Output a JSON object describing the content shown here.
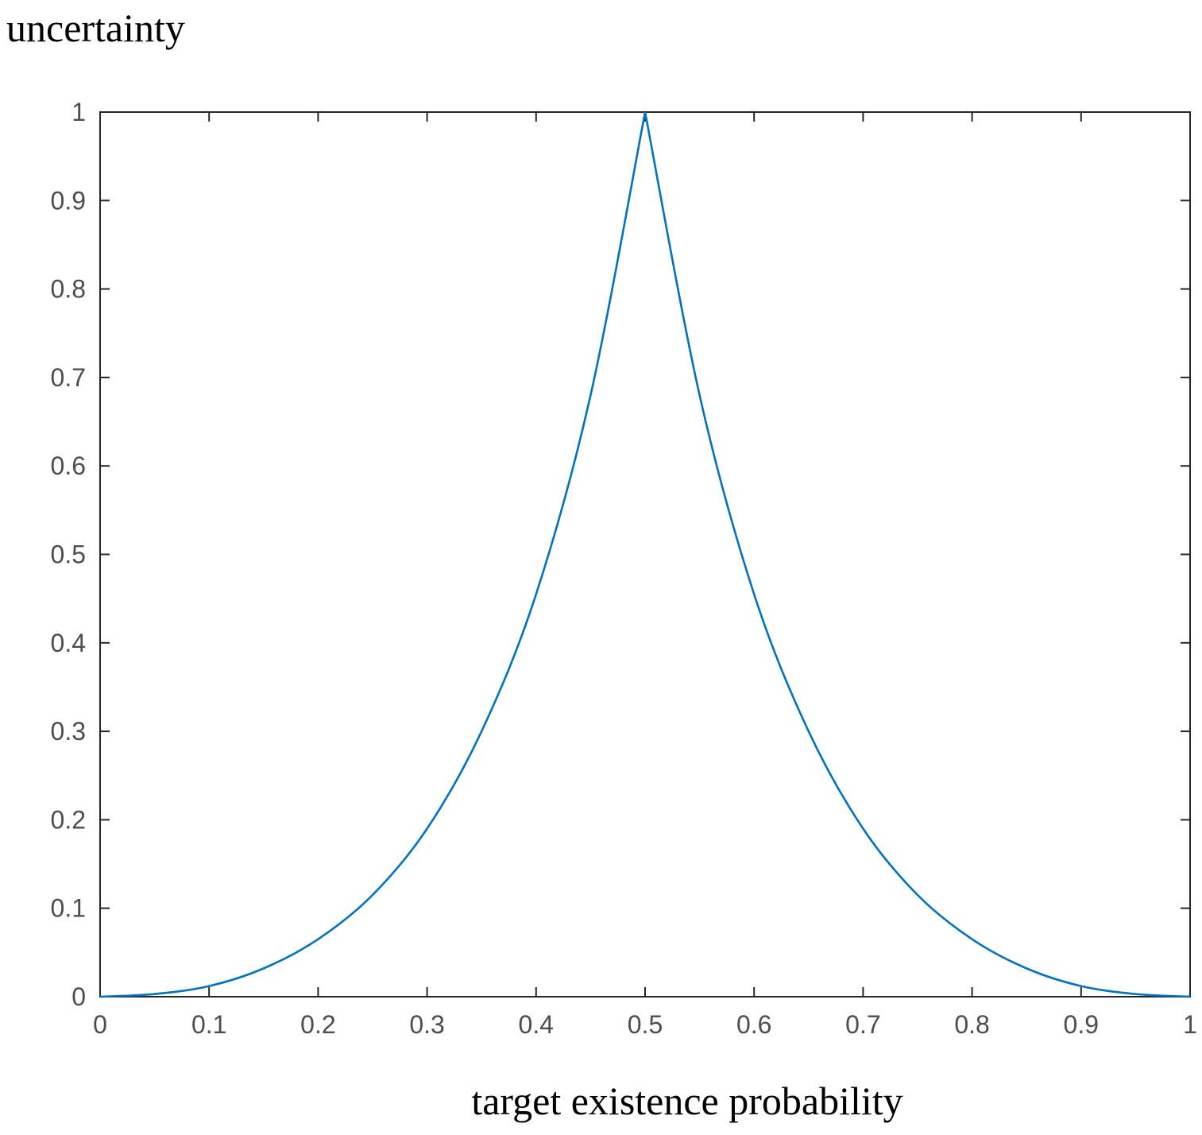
{
  "chart_data": {
    "type": "line",
    "title": "",
    "xlabel": "target existence probability",
    "ylabel": "uncertainty",
    "xlim": [
      0,
      1
    ],
    "ylim": [
      0,
      1
    ],
    "xticks": [
      "0",
      "0.1",
      "0.2",
      "0.3",
      "0.4",
      "0.5",
      "0.6",
      "0.7",
      "0.8",
      "0.9",
      "1"
    ],
    "yticks": [
      "0",
      "0.1",
      "0.2",
      "0.3",
      "0.4",
      "0.5",
      "0.6",
      "0.7",
      "0.8",
      "0.9",
      "1"
    ],
    "grid": false,
    "series": [
      {
        "name": "uncertainty",
        "color": "#0072BD",
        "x": [
          0,
          0.05,
          0.1,
          0.15,
          0.2,
          0.25,
          0.3,
          0.35,
          0.4,
          0.45,
          0.5,
          0.55,
          0.6,
          0.65,
          0.7,
          0.75,
          0.8,
          0.85,
          0.9,
          0.95,
          1
        ],
        "y": [
          0,
          0.003,
          0.012,
          0.032,
          0.065,
          0.115,
          0.19,
          0.3,
          0.455,
          0.68,
          1,
          0.68,
          0.455,
          0.3,
          0.19,
          0.115,
          0.065,
          0.032,
          0.012,
          0.003,
          0
        ]
      }
    ]
  }
}
